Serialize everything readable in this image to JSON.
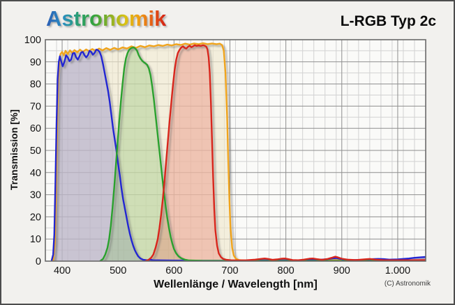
{
  "header": {
    "logo_text": "Astronomik",
    "title": "L-RGB Typ 2c"
  },
  "footer": {
    "copyright": "(C) Astronomik"
  },
  "colors": {
    "frame_background": "#f2f1ee",
    "plot_background": "#fafaf8",
    "grid_minor": "#d2d2d2",
    "grid_major": "#8e8e8e",
    "plot_border": "#6a6a6a",
    "luminance_line": "#f0a41d",
    "blue_line": "#2326d2",
    "green_line": "#2aa12e",
    "red_line": "#d8251c"
  },
  "chart_data": {
    "type": "line",
    "title": "L-RGB Typ 2c",
    "xlabel": "Wellenlänge / Wavelength [nm]",
    "ylabel": "Transmission [%]",
    "xlim": [
      370,
      1050
    ],
    "ylim": [
      0,
      100
    ],
    "grid": true,
    "x_minor_step": 20,
    "y_minor_step": 5,
    "xticks": [
      {
        "value": 400,
        "label": "400"
      },
      {
        "value": 500,
        "label": "500"
      },
      {
        "value": 600,
        "label": "600"
      },
      {
        "value": 700,
        "label": "700"
      },
      {
        "value": 800,
        "label": "800"
      },
      {
        "value": 900,
        "label": "900"
      },
      {
        "value": 1000,
        "label": "1.000"
      }
    ],
    "yticks": [
      {
        "value": 0,
        "label": "0"
      },
      {
        "value": 10,
        "label": "10"
      },
      {
        "value": 20,
        "label": "20"
      },
      {
        "value": 30,
        "label": "30"
      },
      {
        "value": 40,
        "label": "40"
      },
      {
        "value": 50,
        "label": "50"
      },
      {
        "value": 60,
        "label": "60"
      },
      {
        "value": 70,
        "label": "70"
      },
      {
        "value": 80,
        "label": "80"
      },
      {
        "value": 90,
        "label": "90"
      },
      {
        "value": 100,
        "label": "100"
      }
    ],
    "legend": "none",
    "series": [
      {
        "name": "Luminance",
        "color": "#f0a41d",
        "fill": "rgba(240,232,205,0.65)",
        "points": [
          [
            384,
            0
          ],
          [
            387,
            8
          ],
          [
            389,
            30
          ],
          [
            391,
            60
          ],
          [
            393,
            82
          ],
          [
            395,
            90
          ],
          [
            397,
            93.5
          ],
          [
            400,
            94.5
          ],
          [
            403,
            93
          ],
          [
            406,
            95
          ],
          [
            410,
            93.5
          ],
          [
            414,
            95.2
          ],
          [
            418,
            94
          ],
          [
            422,
            95.3
          ],
          [
            427,
            94.3
          ],
          [
            432,
            95.5
          ],
          [
            437,
            94.5
          ],
          [
            443,
            95.6
          ],
          [
            448,
            94.8
          ],
          [
            454,
            95.8
          ],
          [
            460,
            95
          ],
          [
            466,
            96
          ],
          [
            472,
            95.2
          ],
          [
            479,
            96.2
          ],
          [
            486,
            95.4
          ],
          [
            493,
            96.3
          ],
          [
            500,
            95.6
          ],
          [
            508,
            96.5
          ],
          [
            516,
            96
          ],
          [
            524,
            97
          ],
          [
            532,
            96.3
          ],
          [
            540,
            97.2
          ],
          [
            548,
            96.6
          ],
          [
            556,
            97.4
          ],
          [
            564,
            97
          ],
          [
            572,
            97.6
          ],
          [
            580,
            97.2
          ],
          [
            588,
            97.8
          ],
          [
            596,
            97.4
          ],
          [
            604,
            98
          ],
          [
            612,
            97.6
          ],
          [
            620,
            98.2
          ],
          [
            628,
            97.8
          ],
          [
            636,
            98.3
          ],
          [
            644,
            98
          ],
          [
            652,
            98.4
          ],
          [
            660,
            98
          ],
          [
            668,
            98.3
          ],
          [
            676,
            98
          ],
          [
            682,
            98.2
          ],
          [
            686,
            97.5
          ],
          [
            689,
            95
          ],
          [
            692,
            85
          ],
          [
            695,
            65
          ],
          [
            697,
            45
          ],
          [
            699,
            28
          ],
          [
            701,
            15
          ],
          [
            704,
            6
          ],
          [
            707,
            2.5
          ],
          [
            711,
            1
          ],
          [
            716,
            0.5
          ],
          [
            724,
            0.3
          ],
          [
            760,
            0.3
          ],
          [
            800,
            0.3
          ],
          [
            850,
            0.3
          ],
          [
            900,
            0.4
          ],
          [
            950,
            0.3
          ],
          [
            1000,
            0.3
          ],
          [
            1050,
            0.3
          ]
        ]
      },
      {
        "name": "Blue",
        "color": "#2326d2",
        "fill": "rgba(138,132,196,0.40)",
        "points": [
          [
            381,
            0
          ],
          [
            384,
            3
          ],
          [
            386,
            12
          ],
          [
            388,
            35
          ],
          [
            390,
            62
          ],
          [
            392,
            82
          ],
          [
            394,
            90
          ],
          [
            396,
            92.5
          ],
          [
            398,
            90.5
          ],
          [
            401,
            88
          ],
          [
            404,
            90
          ],
          [
            407,
            93
          ],
          [
            410,
            92
          ],
          [
            413,
            90.3
          ],
          [
            416,
            91
          ],
          [
            419,
            93.8
          ],
          [
            422,
            94
          ],
          [
            425,
            92
          ],
          [
            428,
            91
          ],
          [
            431,
            92.5
          ],
          [
            434,
            94.2
          ],
          [
            437,
            94.5
          ],
          [
            440,
            93
          ],
          [
            443,
            92
          ],
          [
            446,
            93
          ],
          [
            449,
            95
          ],
          [
            452,
            94.5
          ],
          [
            455,
            93.2
          ],
          [
            458,
            94
          ],
          [
            461,
            95.5
          ],
          [
            464,
            95.3
          ],
          [
            467,
            94.5
          ],
          [
            470,
            92.5
          ],
          [
            473,
            89
          ],
          [
            476,
            85
          ],
          [
            479,
            81
          ],
          [
            482,
            77
          ],
          [
            485,
            72
          ],
          [
            488,
            66
          ],
          [
            491,
            60
          ],
          [
            494,
            55
          ],
          [
            497,
            50
          ],
          [
            500,
            44
          ],
          [
            503,
            39
          ],
          [
            506,
            33
          ],
          [
            509,
            28
          ],
          [
            512,
            24
          ],
          [
            515,
            20
          ],
          [
            518,
            16
          ],
          [
            521,
            12.5
          ],
          [
            524,
            9.5
          ],
          [
            527,
            7
          ],
          [
            530,
            5
          ],
          [
            533,
            3.5
          ],
          [
            536,
            2.2
          ],
          [
            540,
            1.2
          ],
          [
            545,
            0.6
          ],
          [
            552,
            0.4
          ],
          [
            558,
            0.7
          ],
          [
            562,
            0.4
          ],
          [
            580,
            0.3
          ],
          [
            640,
            0.2
          ],
          [
            700,
            0.2
          ],
          [
            760,
            0.3
          ],
          [
            800,
            0.3
          ],
          [
            840,
            0.4
          ],
          [
            860,
            0.6
          ],
          [
            875,
            0.9
          ],
          [
            885,
            1.3
          ],
          [
            890,
            1.4
          ],
          [
            895,
            1.1
          ],
          [
            905,
            0.7
          ],
          [
            920,
            0.5
          ],
          [
            940,
            0.6
          ],
          [
            955,
            0.9
          ],
          [
            965,
            1
          ],
          [
            975,
            0.9
          ],
          [
            985,
            0.7
          ],
          [
            1000,
            0.8
          ],
          [
            1010,
            1
          ],
          [
            1020,
            1.2
          ],
          [
            1030,
            1.5
          ],
          [
            1040,
            1.7
          ],
          [
            1050,
            1.9
          ]
        ]
      },
      {
        "name": "Green",
        "color": "#2aa12e",
        "fill": "rgba(150,198,120,0.38)",
        "points": [
          [
            468,
            0
          ],
          [
            473,
            1
          ],
          [
            477,
            3
          ],
          [
            481,
            6
          ],
          [
            484,
            10
          ],
          [
            487,
            16
          ],
          [
            490,
            24
          ],
          [
            493,
            33
          ],
          [
            496,
            43
          ],
          [
            499,
            53
          ],
          [
            502,
            63
          ],
          [
            505,
            72
          ],
          [
            508,
            80
          ],
          [
            511,
            87
          ],
          [
            514,
            91.5
          ],
          [
            517,
            94
          ],
          [
            520,
            95.5
          ],
          [
            524,
            96.3
          ],
          [
            528,
            96.5
          ],
          [
            531,
            96
          ],
          [
            534,
            95
          ],
          [
            537,
            93
          ],
          [
            540,
            91.5
          ],
          [
            543,
            90.5
          ],
          [
            546,
            89.8
          ],
          [
            549,
            89.3
          ],
          [
            552,
            88.6
          ],
          [
            555,
            87
          ],
          [
            558,
            84
          ],
          [
            561,
            79
          ],
          [
            564,
            73
          ],
          [
            567,
            66
          ],
          [
            570,
            59
          ],
          [
            573,
            52
          ],
          [
            576,
            45
          ],
          [
            579,
            38
          ],
          [
            582,
            31
          ],
          [
            585,
            25
          ],
          [
            588,
            19.5
          ],
          [
            591,
            15
          ],
          [
            594,
            11
          ],
          [
            597,
            8
          ],
          [
            600,
            5.5
          ],
          [
            604,
            3.5
          ],
          [
            608,
            2.2
          ],
          [
            613,
            1.3
          ],
          [
            619,
            0.7
          ],
          [
            627,
            0.3
          ],
          [
            650,
            0.15
          ],
          [
            700,
            0.1
          ],
          [
            1050,
            0.1
          ]
        ]
      },
      {
        "name": "Red",
        "color": "#d8251c",
        "fill": "rgba(233,128,112,0.38)",
        "points": [
          [
            549,
            0
          ],
          [
            554,
            0.5
          ],
          [
            559,
            1.5
          ],
          [
            563,
            3
          ],
          [
            567,
            6
          ],
          [
            571,
            10
          ],
          [
            574,
            15
          ],
          [
            577,
            21
          ],
          [
            580,
            28
          ],
          [
            583,
            36
          ],
          [
            586,
            45
          ],
          [
            589,
            54
          ],
          [
            592,
            63
          ],
          [
            595,
            71
          ],
          [
            598,
            79
          ],
          [
            601,
            86
          ],
          [
            604,
            91
          ],
          [
            607,
            94
          ],
          [
            610,
            95.5
          ],
          [
            613,
            96.5
          ],
          [
            616,
            97
          ],
          [
            619,
            96.3
          ],
          [
            622,
            96
          ],
          [
            625,
            96.8
          ],
          [
            628,
            97.3
          ],
          [
            631,
            96.6
          ],
          [
            634,
            97
          ],
          [
            637,
            97.5
          ],
          [
            640,
            97.2
          ],
          [
            644,
            97.4
          ],
          [
            648,
            97.2
          ],
          [
            652,
            97.5
          ],
          [
            655,
            97.3
          ],
          [
            658,
            96.8
          ],
          [
            660,
            95.5
          ],
          [
            662,
            92
          ],
          [
            664,
            85
          ],
          [
            666,
            72
          ],
          [
            668,
            55
          ],
          [
            670,
            38
          ],
          [
            672,
            24
          ],
          [
            674,
            14
          ],
          [
            677,
            7
          ],
          [
            680,
            3.5
          ],
          [
            684,
            1.8
          ],
          [
            688,
            1
          ],
          [
            694,
            0.6
          ],
          [
            702,
            0.4
          ],
          [
            715,
            0.3
          ],
          [
            730,
            0.4
          ],
          [
            745,
            0.7
          ],
          [
            755,
            1
          ],
          [
            762,
            1.2
          ],
          [
            768,
            1
          ],
          [
            776,
            0.6
          ],
          [
            784,
            0.8
          ],
          [
            792,
            1.1
          ],
          [
            798,
            1.2
          ],
          [
            804,
            0.9
          ],
          [
            812,
            0.5
          ],
          [
            822,
            0.4
          ],
          [
            832,
            0.7
          ],
          [
            842,
            1.1
          ],
          [
            848,
            1.2
          ],
          [
            855,
            0.9
          ],
          [
            865,
            0.6
          ],
          [
            875,
            1
          ],
          [
            883,
            1.6
          ],
          [
            888,
            2
          ],
          [
            893,
            1.7
          ],
          [
            900,
            1.1
          ],
          [
            910,
            0.7
          ],
          [
            925,
            0.5
          ],
          [
            940,
            0.8
          ],
          [
            950,
            1
          ],
          [
            960,
            0.7
          ],
          [
            975,
            0.4
          ],
          [
            1000,
            0.4
          ],
          [
            1025,
            0.4
          ],
          [
            1050,
            0.5
          ]
        ]
      }
    ]
  }
}
